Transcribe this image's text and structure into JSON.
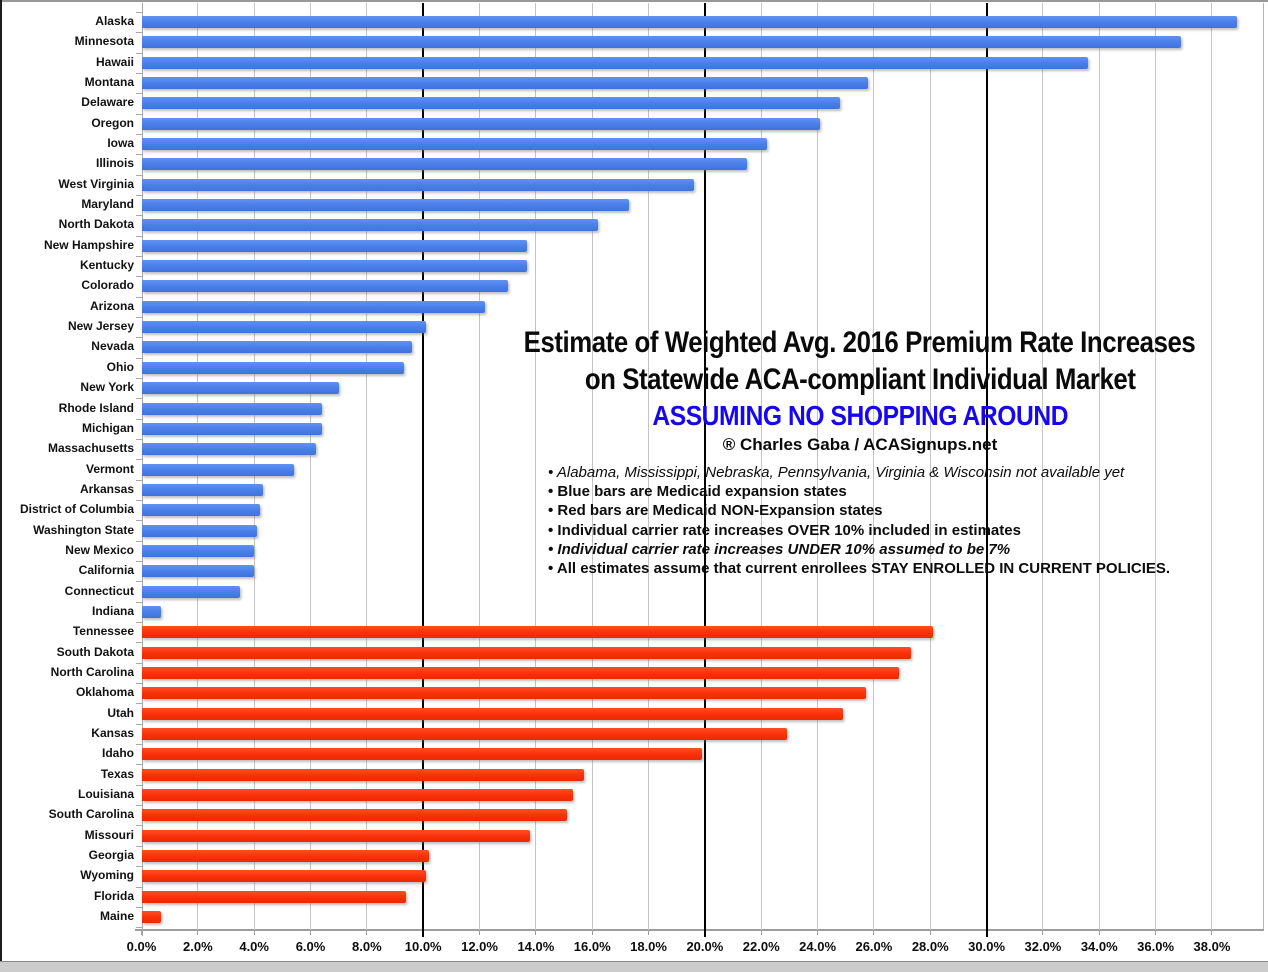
{
  "title": {
    "line1": "Estimate of Weighted Avg. 2016 Premium Rate Increases",
    "line2": "on Statewide ACA-compliant Individual Market",
    "line3": "ASSUMING NO SHOPPING AROUND",
    "line3_color": "#1606f2",
    "credit": "® Charles Gaba / ACASignups.net"
  },
  "notes": [
    {
      "text": "• Alabama, Mississippi, Nebraska, Pennsylvania, Virginia & Wisconsin not available yet",
      "style": "italic"
    },
    {
      "text": "• Blue bars are Medicaid expansion states",
      "style": "bold"
    },
    {
      "text": "• Red bars are Medicaid NON-Expansion states",
      "style": "bold"
    },
    {
      "text": "• Individual carrier rate increases OVER 10% included in estimates",
      "style": "bold"
    },
    {
      "text": "• Individual carrier rate increases UNDER 10% assumed to be 7%",
      "style": "bold-italic"
    },
    {
      "text": "• All estimates assume that current enrollees STAY ENROLLED IN CURRENT POLICIES.",
      "style": "bold"
    }
  ],
  "chart_data": {
    "type": "bar",
    "orientation": "horizontal",
    "unit": "percent",
    "xlim": [
      0,
      39.8
    ],
    "grid": "on",
    "major_gridlines_pct": [
      10,
      20,
      30
    ],
    "x_tick_labels": [
      "0.0%",
      "2.0%",
      "4.0%",
      "6.0%",
      "8.0%",
      "10.0%",
      "12.0%",
      "14.0%",
      "16.0%",
      "18.0%",
      "20.0%",
      "22.0%",
      "24.0%",
      "26.0%",
      "28.0%",
      "30.0%",
      "32.0%",
      "34.0%",
      "36.0%",
      "38.0%"
    ],
    "x_tick_step_pct": 2,
    "groups": {
      "expansion": {
        "label": "Medicaid expansion states",
        "color": "#4a7fea"
      },
      "non_expansion": {
        "label": "Medicaid NON-Expansion states",
        "color": "#f93007"
      }
    },
    "states": [
      {
        "name": "Alaska",
        "value": 38.9,
        "group": "expansion"
      },
      {
        "name": "Minnesota",
        "value": 36.9,
        "group": "expansion"
      },
      {
        "name": "Hawaii",
        "value": 33.6,
        "group": "expansion"
      },
      {
        "name": "Montana",
        "value": 25.8,
        "group": "expansion"
      },
      {
        "name": "Delaware",
        "value": 24.8,
        "group": "expansion"
      },
      {
        "name": "Oregon",
        "value": 24.1,
        "group": "expansion"
      },
      {
        "name": "Iowa",
        "value": 22.2,
        "group": "expansion"
      },
      {
        "name": "Illinois",
        "value": 21.5,
        "group": "expansion"
      },
      {
        "name": "West Virginia",
        "value": 19.6,
        "group": "expansion"
      },
      {
        "name": "Maryland",
        "value": 17.3,
        "group": "expansion"
      },
      {
        "name": "North Dakota",
        "value": 16.2,
        "group": "expansion"
      },
      {
        "name": "New Hampshire",
        "value": 13.7,
        "group": "expansion"
      },
      {
        "name": "Kentucky",
        "value": 13.7,
        "group": "expansion"
      },
      {
        "name": "Colorado",
        "value": 13.0,
        "group": "expansion"
      },
      {
        "name": "Arizona",
        "value": 12.2,
        "group": "expansion"
      },
      {
        "name": "New Jersey",
        "value": 10.1,
        "group": "expansion"
      },
      {
        "name": "Nevada",
        "value": 9.6,
        "group": "expansion"
      },
      {
        "name": "Ohio",
        "value": 9.3,
        "group": "expansion"
      },
      {
        "name": "New York",
        "value": 7.0,
        "group": "expansion"
      },
      {
        "name": "Rhode Island",
        "value": 6.4,
        "group": "expansion"
      },
      {
        "name": "Michigan",
        "value": 6.4,
        "group": "expansion"
      },
      {
        "name": "Massachusetts",
        "value": 6.2,
        "group": "expansion"
      },
      {
        "name": "Vermont",
        "value": 5.4,
        "group": "expansion"
      },
      {
        "name": "Arkansas",
        "value": 4.3,
        "group": "expansion"
      },
      {
        "name": "District of Columbia",
        "value": 4.2,
        "group": "expansion"
      },
      {
        "name": "Washington State",
        "value": 4.1,
        "group": "expansion"
      },
      {
        "name": "New Mexico",
        "value": 4.0,
        "group": "expansion"
      },
      {
        "name": "California",
        "value": 4.0,
        "group": "expansion"
      },
      {
        "name": "Connecticut",
        "value": 3.5,
        "group": "expansion"
      },
      {
        "name": "Indiana",
        "value": 0.7,
        "group": "expansion"
      },
      {
        "name": "Tennessee",
        "value": 28.1,
        "group": "non_expansion"
      },
      {
        "name": "South Dakota",
        "value": 27.3,
        "group": "non_expansion"
      },
      {
        "name": "North Carolina",
        "value": 26.9,
        "group": "non_expansion"
      },
      {
        "name": "Oklahoma",
        "value": 25.7,
        "group": "non_expansion"
      },
      {
        "name": "Utah",
        "value": 24.9,
        "group": "non_expansion"
      },
      {
        "name": "Kansas",
        "value": 22.9,
        "group": "non_expansion"
      },
      {
        "name": "Idaho",
        "value": 19.9,
        "group": "non_expansion"
      },
      {
        "name": "Texas",
        "value": 15.7,
        "group": "non_expansion"
      },
      {
        "name": "Louisiana",
        "value": 15.3,
        "group": "non_expansion"
      },
      {
        "name": "South Carolina",
        "value": 15.1,
        "group": "non_expansion"
      },
      {
        "name": "Missouri",
        "value": 13.8,
        "group": "non_expansion"
      },
      {
        "name": "Georgia",
        "value": 10.2,
        "group": "non_expansion"
      },
      {
        "name": "Wyoming",
        "value": 10.1,
        "group": "non_expansion"
      },
      {
        "name": "Florida",
        "value": 9.4,
        "group": "non_expansion"
      },
      {
        "name": "Maine",
        "value": 0.7,
        "group": "non_expansion"
      }
    ]
  }
}
